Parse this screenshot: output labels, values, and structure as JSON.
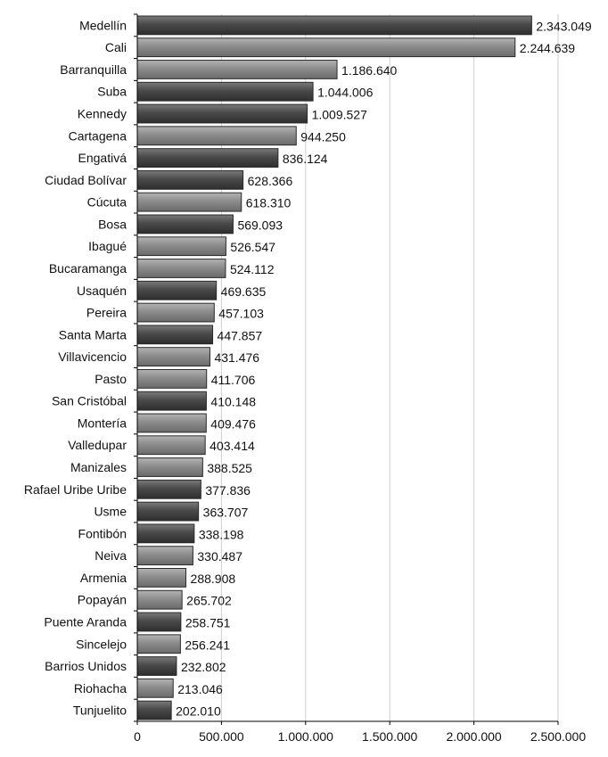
{
  "chart_data": {
    "type": "bar",
    "orientation": "horizontal",
    "categories": [
      "Medellín",
      "Cali",
      "Barranquilla",
      "Suba",
      "Kennedy",
      "Cartagena",
      "Engativá",
      "Ciudad Bolívar",
      "Cúcuta",
      "Bosa",
      "Ibagué",
      "Bucaramanga",
      "Usaquén",
      "Pereira",
      "Santa Marta",
      "Villavicencio",
      "Pasto",
      "San Cristóbal",
      "Montería",
      "Valledupar",
      "Manizales",
      "Rafael Uribe Uribe",
      "Usme",
      "Fontibón",
      "Neiva",
      "Armenia",
      "Popayán",
      "Puente Aranda",
      "Sincelejo",
      "Barrios Unidos",
      "Riohacha",
      "Tunjuelito"
    ],
    "values": [
      2343049,
      2244639,
      1186640,
      1044006,
      1009527,
      944250,
      836124,
      628366,
      618310,
      569093,
      526547,
      524112,
      469635,
      457103,
      447857,
      431476,
      411706,
      410148,
      409476,
      403414,
      388525,
      377836,
      363707,
      338198,
      330487,
      288908,
      265702,
      258751,
      256241,
      232802,
      213046,
      202010
    ],
    "value_labels": [
      "2.343.049",
      "2.244.639",
      "1.186.640",
      "1.044.006",
      "1.009.527",
      "944.250",
      "836.124",
      "628.366",
      "618.310",
      "569.093",
      "526.547",
      "524.112",
      "469.635",
      "457.103",
      "447.857",
      "431.476",
      "411.706",
      "410.148",
      "409.476",
      "403.414",
      "388.525",
      "377.836",
      "363.707",
      "338.198",
      "330.487",
      "288.908",
      "265.702",
      "258.751",
      "256.241",
      "232.802",
      "213.046",
      "202.010"
    ],
    "bar_shade": [
      "dark",
      "light",
      "light",
      "dark",
      "dark",
      "light",
      "dark",
      "dark",
      "light",
      "dark",
      "light",
      "light",
      "dark",
      "light",
      "dark",
      "light",
      "light",
      "dark",
      "light",
      "light",
      "light",
      "dark",
      "dark",
      "dark",
      "light",
      "light",
      "light",
      "dark",
      "light",
      "dark",
      "light",
      "dark"
    ],
    "xlim": [
      0,
      2500000
    ],
    "xticks": [
      0,
      500000,
      1000000,
      1500000,
      2000000,
      2500000
    ],
    "xtick_labels": [
      "0",
      "500.000",
      "1.000.000",
      "1.500.000",
      "2.000.000",
      "2.500.000"
    ],
    "title": "",
    "xlabel": "",
    "ylabel": "",
    "grid": "vertical",
    "legend": "none",
    "colors": {
      "dark": "#4a4a4a",
      "light": "#8c8c8c",
      "grid": "#cfcfcf",
      "axis": "#000000"
    }
  }
}
